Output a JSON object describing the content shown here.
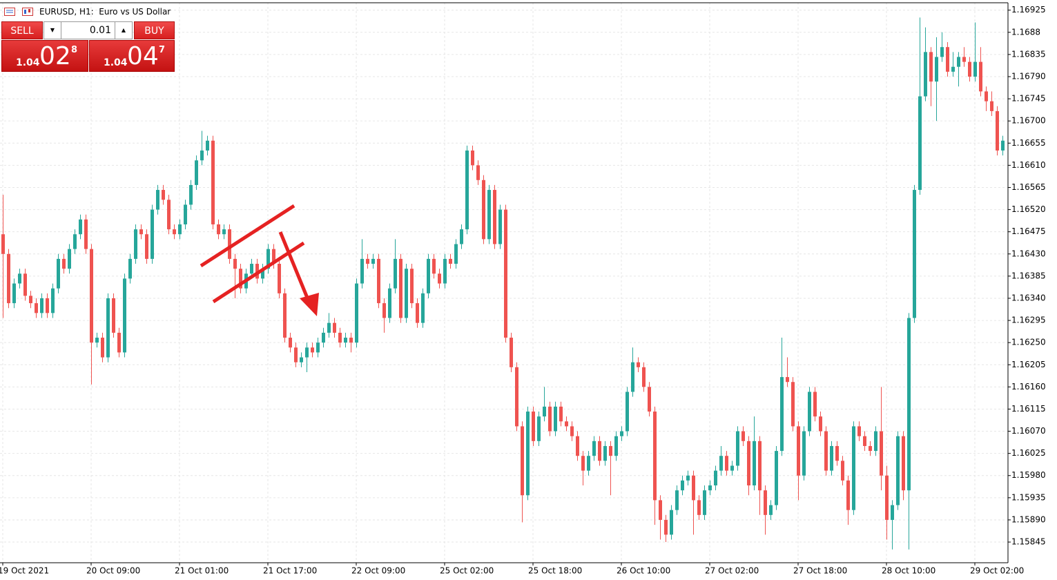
{
  "header": {
    "symbol_title": "EURUSD, H1:  Euro vs US Dollar"
  },
  "trade_panel": {
    "sell": "SELL",
    "buy": "BUY",
    "lot": "0.01",
    "bid": {
      "big_figure": "1.04",
      "pips": "02",
      "fraction": "8"
    },
    "ask": {
      "big_figure": "1.04",
      "pips": "04",
      "fraction": "7"
    }
  },
  "chart_data": {
    "type": "candlestick",
    "x_tick_labels": [
      "19 Oct 2021",
      "20 Oct 09:00",
      "21 Oct 01:00",
      "21 Oct 17:00",
      "22 Oct 09:00",
      "25 Oct 02:00",
      "25 Oct 18:00",
      "26 Oct 10:00",
      "27 Oct 02:00",
      "27 Oct 18:00",
      "28 Oct 10:00",
      "29 Oct 02:00"
    ],
    "open": [
      1.1647,
      1.1643,
      1.1633,
      1.1637,
      1.1639,
      1.16345,
      1.1633,
      1.1631,
      1.1634,
      1.1631,
      1.1636,
      1.1642,
      1.164,
      1.1644,
      1.1647,
      1.165,
      1.1644,
      1.1625,
      1.1626,
      1.1622,
      1.1634,
      1.1627,
      1.1623,
      1.1638,
      1.1642,
      1.1648,
      1.1647,
      1.1642,
      1.1652,
      1.1656,
      1.1654,
      1.1648,
      1.1647,
      1.1649,
      1.1653,
      1.1657,
      1.1662,
      1.1664,
      1.1666,
      1.1649,
      1.1647,
      1.1648,
      1.1642,
      1.164,
      1.1636,
      1.1639,
      1.1641,
      1.1638,
      1.164,
      1.1644,
      1.1641,
      1.1635,
      1.1626,
      1.1624,
      1.1621,
      1.1622,
      1.1624,
      1.1623,
      1.1625,
      1.1627,
      1.1629,
      1.1627,
      1.1625,
      1.1626,
      1.1625,
      1.1637,
      1.1642,
      1.1641,
      1.1642,
      1.1633,
      1.163,
      1.1636,
      1.1642,
      1.163,
      1.164,
      1.1633,
      1.1629,
      1.1635,
      1.1642,
      1.1639,
      1.1637,
      1.1642,
      1.1641,
      1.1645,
      1.1648,
      1.1664,
      1.1661,
      1.1658,
      1.1646,
      1.1656,
      1.1645,
      1.1652,
      1.1626,
      1.162,
      1.1608,
      1.1594,
      1.1611,
      1.1605,
      1.161,
      1.1612,
      1.1607,
      1.1612,
      1.1609,
      1.1608,
      1.1606,
      1.1602,
      1.1599,
      1.1602,
      1.1605,
      1.1601,
      1.1604,
      1.1602,
      1.1606,
      1.1607,
      1.1615,
      1.1621,
      1.162,
      1.1616,
      1.1611,
      1.1593,
      1.1589,
      1.1586,
      1.1591,
      1.1595,
      1.1597,
      1.1598,
      1.1593,
      1.159,
      1.1595,
      1.1596,
      1.1599,
      1.1602,
      1.1599,
      1.16,
      1.1607,
      1.1605,
      1.1596,
      1.1605,
      1.1595,
      1.159,
      1.1592,
      1.1603,
      1.1618,
      1.1617,
      1.1608,
      1.1598,
      1.1607,
      1.1615,
      1.161,
      1.1607,
      1.1599,
      1.1604,
      1.1601,
      1.1597,
      1.1591,
      1.1608,
      1.1606,
      1.1604,
      1.1603,
      1.1607,
      1.1598,
      1.1589,
      1.1592,
      1.1606,
      1.1595,
      1.163,
      1.1656,
      1.1675,
      1.1684,
      1.1678,
      1.1683,
      1.1685,
      1.168,
      1.1681,
      1.1683,
      1.1682,
      1.1679,
      1.1682,
      1.1676,
      1.1674,
      1.1672,
      1.1664
    ],
    "high": [
      1.1655,
      1.1644,
      1.1638,
      1.164,
      1.164,
      1.16355,
      1.1634,
      1.1635,
      1.1635,
      1.1637,
      1.1643,
      1.1643,
      1.1645,
      1.1648,
      1.1651,
      1.1651,
      1.1645,
      1.1627,
      1.1627,
      1.1635,
      1.1635,
      1.1628,
      1.1639,
      1.1643,
      1.1649,
      1.1649,
      1.1648,
      1.1653,
      1.1657,
      1.1657,
      1.1655,
      1.1649,
      1.165,
      1.1654,
      1.1658,
      1.1663,
      1.1668,
      1.1667,
      1.1667,
      1.165,
      1.1649,
      1.1649,
      1.1643,
      1.1641,
      1.164,
      1.1642,
      1.1642,
      1.1641,
      1.1645,
      1.1645,
      1.1642,
      1.1636,
      1.1627,
      1.1625,
      1.1623,
      1.1625,
      1.1625,
      1.1626,
      1.1628,
      1.1631,
      1.163,
      1.1628,
      1.1627,
      1.1627,
      1.1638,
      1.1646,
      1.1643,
      1.1643,
      1.1643,
      1.1634,
      1.1637,
      1.1646,
      1.1643,
      1.1641,
      1.1641,
      1.1634,
      1.1636,
      1.1643,
      1.1643,
      1.164,
      1.1643,
      1.1643,
      1.1646,
      1.1649,
      1.1665,
      1.1665,
      1.1662,
      1.1659,
      1.1657,
      1.1657,
      1.1653,
      1.1653,
      1.1627,
      1.1621,
      1.1609,
      1.1612,
      1.1612,
      1.1611,
      1.1616,
      1.1613,
      1.1613,
      1.1613,
      1.161,
      1.1609,
      1.1607,
      1.1603,
      1.1603,
      1.1606,
      1.1606,
      1.1605,
      1.1605,
      1.1607,
      1.1608,
      1.1616,
      1.1624,
      1.1622,
      1.1621,
      1.1617,
      1.1612,
      1.1594,
      1.159,
      1.1592,
      1.1596,
      1.1598,
      1.1599,
      1.1599,
      1.1594,
      1.1596,
      1.1597,
      1.16,
      1.1604,
      1.1603,
      1.1601,
      1.1608,
      1.1608,
      1.1606,
      1.161,
      1.1606,
      1.1596,
      1.1593,
      1.1604,
      1.1626,
      1.1622,
      1.1618,
      1.1609,
      1.1608,
      1.1616,
      1.1616,
      1.1611,
      1.1608,
      1.1605,
      1.1605,
      1.1602,
      1.1598,
      1.1609,
      1.1609,
      1.1607,
      1.1605,
      1.1608,
      1.1616,
      1.16,
      1.1593,
      1.1607,
      1.1607,
      1.1631,
      1.1657,
      1.1691,
      1.1689,
      1.1685,
      1.1687,
      1.1688,
      1.1686,
      1.1684,
      1.1684,
      1.1685,
      1.1683,
      1.169,
      1.1685,
      1.1677,
      1.1676,
      1.1673,
      1.1667
    ],
    "low": [
      1.163,
      1.1632,
      1.1632,
      1.1636,
      1.16335,
      1.1632,
      1.163,
      1.163,
      1.163,
      1.163,
      1.1635,
      1.1639,
      1.1639,
      1.1643,
      1.1646,
      1.1643,
      1.16165,
      1.1624,
      1.1621,
      1.1621,
      1.1626,
      1.1622,
      1.1622,
      1.1637,
      1.1641,
      1.1646,
      1.1641,
      1.1641,
      1.1651,
      1.1653,
      1.1647,
      1.1646,
      1.1646,
      1.1648,
      1.1652,
      1.1656,
      1.1661,
      1.1663,
      1.1648,
      1.1646,
      1.1646,
      1.1641,
      1.1634,
      1.1635,
      1.1635,
      1.1638,
      1.1637,
      1.1637,
      1.1639,
      1.164,
      1.1634,
      1.1625,
      1.1623,
      1.162,
      1.162,
      1.1619,
      1.1622,
      1.1622,
      1.1624,
      1.1626,
      1.1626,
      1.1624,
      1.1624,
      1.1623,
      1.1624,
      1.1636,
      1.164,
      1.164,
      1.1632,
      1.1627,
      1.1629,
      1.1635,
      1.1629,
      1.1629,
      1.1632,
      1.1628,
      1.1628,
      1.1634,
      1.1638,
      1.1636,
      1.1636,
      1.164,
      1.164,
      1.1644,
      1.1647,
      1.166,
      1.1657,
      1.1645,
      1.1645,
      1.1644,
      1.1644,
      1.1625,
      1.1619,
      1.1607,
      1.15885,
      1.1593,
      1.1604,
      1.1604,
      1.1609,
      1.1606,
      1.1606,
      1.1608,
      1.1607,
      1.1605,
      1.1601,
      1.1596,
      1.1598,
      1.1601,
      1.16,
      1.16,
      1.1594,
      1.1601,
      1.1605,
      1.1606,
      1.1614,
      1.1619,
      1.1615,
      1.161,
      1.1588,
      1.1585,
      1.15845,
      1.1585,
      1.159,
      1.1594,
      1.1596,
      1.1586,
      1.1589,
      1.1589,
      1.1594,
      1.1595,
      1.1598,
      1.1598,
      1.1598,
      1.1599,
      1.1604,
      1.1594,
      1.1595,
      1.159,
      1.1586,
      1.1589,
      1.1591,
      1.1602,
      1.1616,
      1.1607,
      1.1593,
      1.1597,
      1.1606,
      1.1609,
      1.1606,
      1.1598,
      1.1598,
      1.16,
      1.1596,
      1.1588,
      1.159,
      1.1605,
      1.1603,
      1.1602,
      1.1602,
      1.1595,
      1.1585,
      1.1583,
      1.1591,
      1.1593,
      1.1583,
      1.1629,
      1.1655,
      1.1674,
      1.1673,
      1.167,
      1.1682,
      1.1679,
      1.1679,
      1.1677,
      1.1681,
      1.1678,
      1.1678,
      1.1675,
      1.1672,
      1.1671,
      1.1663,
      1.1663
    ],
    "close": [
      1.1643,
      1.1633,
      1.1637,
      1.1639,
      1.16345,
      1.1633,
      1.1631,
      1.1634,
      1.1631,
      1.1636,
      1.1642,
      1.164,
      1.1644,
      1.1647,
      1.165,
      1.1644,
      1.1625,
      1.1626,
      1.1622,
      1.1634,
      1.1627,
      1.1623,
      1.1638,
      1.1642,
      1.1648,
      1.1647,
      1.1642,
      1.1652,
      1.1656,
      1.1654,
      1.1648,
      1.1647,
      1.1649,
      1.1653,
      1.1657,
      1.1662,
      1.1664,
      1.1666,
      1.1649,
      1.1647,
      1.1648,
      1.1642,
      1.164,
      1.1636,
      1.1639,
      1.1641,
      1.1638,
      1.164,
      1.1644,
      1.1641,
      1.1635,
      1.1626,
      1.1624,
      1.1621,
      1.1622,
      1.1624,
      1.1623,
      1.1625,
      1.1627,
      1.1629,
      1.1627,
      1.1625,
      1.1626,
      1.1625,
      1.1637,
      1.1642,
      1.1641,
      1.1642,
      1.1633,
      1.163,
      1.1636,
      1.1642,
      1.163,
      1.164,
      1.1633,
      1.1629,
      1.1635,
      1.1642,
      1.1639,
      1.1637,
      1.1642,
      1.1641,
      1.1645,
      1.1648,
      1.1664,
      1.1661,
      1.1658,
      1.1646,
      1.1656,
      1.1645,
      1.1652,
      1.1626,
      1.162,
      1.1608,
      1.1594,
      1.1611,
      1.1605,
      1.161,
      1.1612,
      1.1607,
      1.1612,
      1.1609,
      1.1608,
      1.1606,
      1.1602,
      1.1599,
      1.1602,
      1.1605,
      1.1601,
      1.1604,
      1.1602,
      1.1606,
      1.1607,
      1.1615,
      1.1621,
      1.162,
      1.1616,
      1.1611,
      1.1593,
      1.1589,
      1.1586,
      1.1591,
      1.1595,
      1.1597,
      1.1598,
      1.1593,
      1.159,
      1.1595,
      1.1596,
      1.1599,
      1.1602,
      1.1599,
      1.16,
      1.1607,
      1.1605,
      1.1596,
      1.1605,
      1.1595,
      1.159,
      1.1592,
      1.1603,
      1.1618,
      1.1617,
      1.1608,
      1.1598,
      1.1607,
      1.1615,
      1.161,
      1.1607,
      1.1599,
      1.1604,
      1.1601,
      1.1597,
      1.1591,
      1.1608,
      1.1606,
      1.1604,
      1.1603,
      1.1607,
      1.1598,
      1.1589,
      1.1592,
      1.1606,
      1.1595,
      1.163,
      1.1656,
      1.1675,
      1.1684,
      1.1678,
      1.1683,
      1.1685,
      1.168,
      1.1681,
      1.1683,
      1.1682,
      1.1679,
      1.1682,
      1.1676,
      1.1674,
      1.1672,
      1.1664,
      1.1666
    ],
    "ylim": [
      1.15803,
      1.1694
    ],
    "yticks": [
      1.16925,
      1.1688,
      1.16835,
      {
        "value": 1.1679,
        "label": "1.16790"
      },
      1.16745,
      {
        "value": 1.167,
        "label": "1.16700"
      },
      1.16655,
      {
        "value": 1.1661,
        "label": "1.16610"
      },
      1.16565,
      {
        "value": 1.1652,
        "label": "1.16520"
      },
      1.16475,
      {
        "value": 1.1643,
        "label": "1.16430"
      },
      1.16385,
      {
        "value": 1.1634,
        "label": "1.16340"
      },
      1.16295,
      {
        "value": 1.1625,
        "label": "1.16250"
      },
      1.16205,
      {
        "value": 1.1616,
        "label": "1.16160"
      },
      1.16115,
      {
        "value": 1.1607,
        "label": "1.16070"
      },
      1.16025,
      {
        "value": 1.1598,
        "label": "1.15980"
      },
      1.15935,
      {
        "value": 1.1589,
        "label": "1.15890"
      },
      1.15845
    ],
    "grid": true,
    "up_color": "#26a69a",
    "down_color": "#ef5350"
  }
}
